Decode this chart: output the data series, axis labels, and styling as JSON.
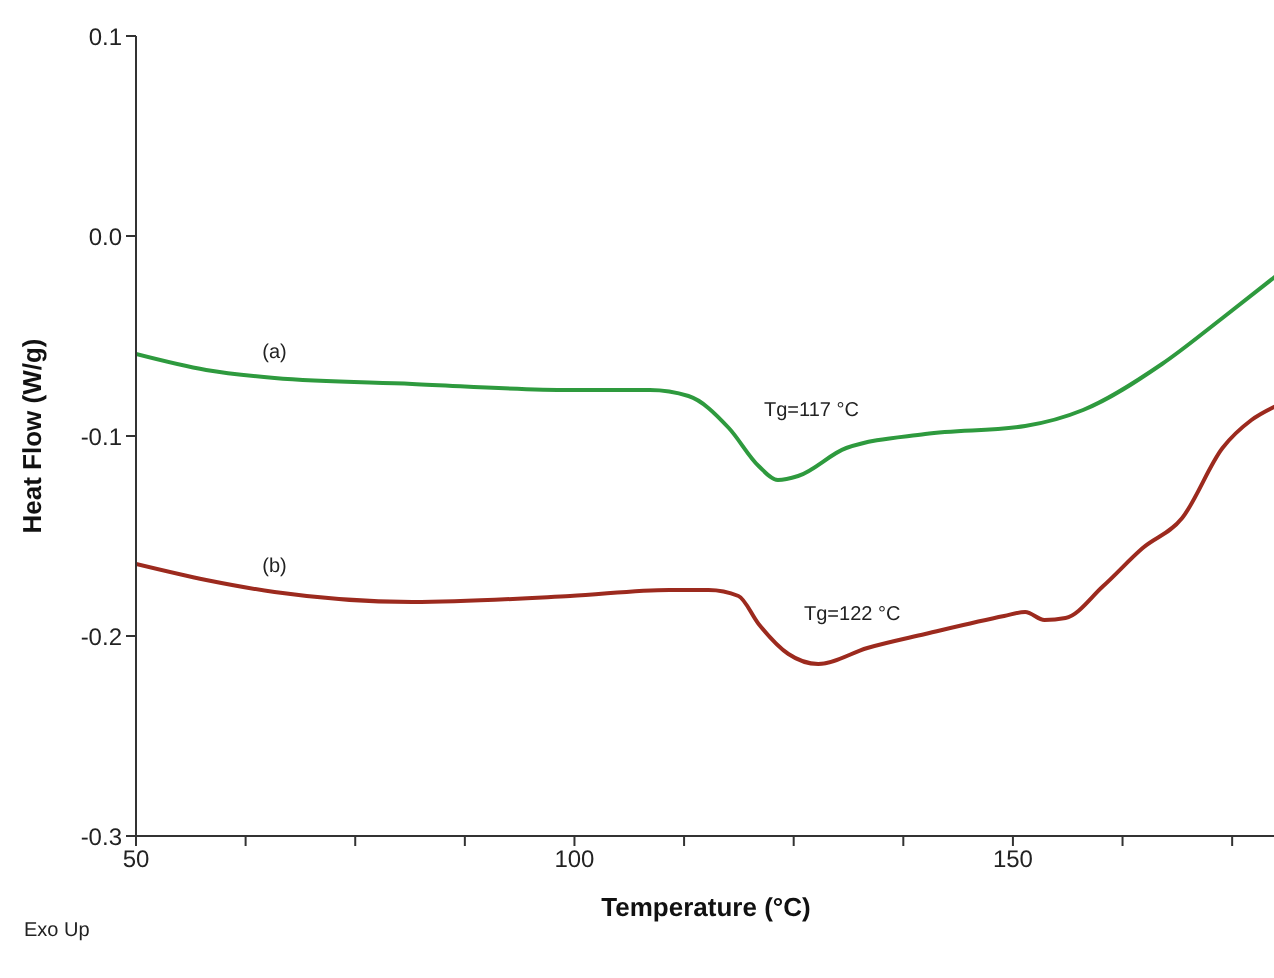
{
  "chart_data": {
    "type": "line",
    "xlabel": "Temperature (°C)",
    "ylabel": "Heat Flow (W/g)",
    "xlim": [
      50,
      180
    ],
    "xticks": [
      50,
      {
        "value": 62.5,
        "label": null
      },
      {
        "value": 75,
        "label": null
      },
      {
        "value": 87.5,
        "label": null
      },
      100,
      {
        "value": 112.5,
        "label": null
      },
      {
        "value": 125,
        "label": null
      },
      {
        "value": 137.5,
        "label": null
      },
      150,
      {
        "value": 162.5,
        "label": null
      },
      {
        "value": 175,
        "label": null
      }
    ],
    "ylim": [
      -0.3,
      0.1
    ],
    "yticks": [
      {
        "value": -0.3,
        "label": "-0.3"
      },
      {
        "value": -0.2,
        "label": "-0.2"
      },
      {
        "value": -0.1,
        "label": "-0.1"
      },
      {
        "value": 0,
        "label": "0.0"
      },
      {
        "value": 0.1,
        "label": "0.1"
      }
    ],
    "grid": false,
    "legend": false,
    "marker": "none",
    "line_style": "solid",
    "series": [
      {
        "name": "(a)",
        "color": "#2e9a3e",
        "x": [
          50,
          58,
          65.8,
          81.5,
          99.5,
          108.6,
          113,
          117.6,
          121,
          123.2,
          125.5,
          131,
          140,
          151.4,
          158,
          167,
          173.9,
          180
        ],
        "values": [
          -0.059,
          -0.067,
          -0.071,
          -0.074,
          -0.077,
          -0.077,
          -0.08,
          -0.096,
          -0.115,
          -0.122,
          -0.12,
          -0.106,
          -0.099,
          -0.095,
          -0.087,
          -0.064,
          -0.041,
          -0.02
        ]
      },
      {
        "name": "(b)",
        "color": "#9c2a1e",
        "x": [
          50,
          58,
          65.8,
          81.5,
          99.5,
          110.8,
          115.3,
          118.7,
          121,
          124.4,
          127.8,
          133.4,
          140,
          149,
          151.4,
          153.6,
          156,
          160.3,
          164.8,
          169.3,
          173.9,
          177.2,
          180
        ],
        "values": [
          -0.164,
          -0.172,
          -0.178,
          -0.183,
          -0.18,
          -0.177,
          -0.177,
          -0.18,
          -0.194,
          -0.209,
          -0.214,
          -0.206,
          -0.199,
          -0.19,
          -0.188,
          -0.192,
          -0.191,
          -0.175,
          -0.156,
          -0.141,
          -0.106,
          -0.092,
          -0.085
        ]
      }
    ],
    "annotations": [
      "Tg=117 °C",
      "Tg=122 °C",
      "Exo Up"
    ]
  }
}
